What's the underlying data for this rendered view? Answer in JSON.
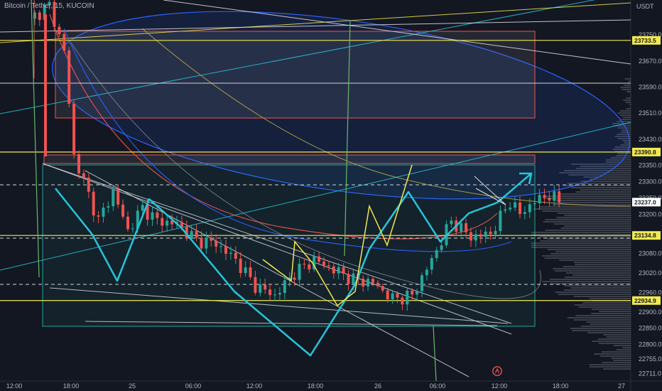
{
  "header": {
    "symbol_title": "Bitcoin / Tether, 15, KUCOIN",
    "currency": "USDT"
  },
  "chart_data": {
    "type": "candlestick",
    "title": "Bitcoin / Tether, 15, KUCOIN",
    "y_unit": "USDT",
    "ylim": [
      22690,
      23840
    ],
    "y_ticks": [
      23750.0,
      23670.0,
      23590.0,
      23510.0,
      23430.0,
      23350.0,
      23300.0,
      23250.0,
      23200.0,
      23080.0,
      23020.0,
      22960.0,
      22900.0,
      22850.0,
      22800.0,
      22755.0,
      22711.0
    ],
    "x_ticks": [
      "12:00",
      "18:00",
      "25",
      "06:00",
      "12:00",
      "18:00",
      "26",
      "06:00",
      "12:00",
      "18:00",
      "27"
    ],
    "horizontal_levels": [
      {
        "price": 23733.5,
        "label": "23733.5",
        "color": "#f2e94e"
      },
      {
        "price": 23390.8,
        "label": "23390.8",
        "color": "#f2e94e"
      },
      {
        "price": 23134.8,
        "label": "23134.8",
        "color": "#f2e94e"
      },
      {
        "price": 22934.9,
        "label": "22934.9",
        "color": "#f2e94e"
      }
    ],
    "last_price": {
      "price": 23237.0,
      "label": "23237.0",
      "color": "#ffffff"
    },
    "price_path": [
      [
        0,
        23800
      ],
      [
        4,
        23840
      ],
      [
        7,
        23700
      ],
      [
        9,
        23380
      ],
      [
        11,
        23300
      ],
      [
        14,
        23180
      ],
      [
        17,
        23270
      ],
      [
        20,
        23150
      ],
      [
        23,
        23220
      ],
      [
        26,
        23180
      ],
      [
        30,
        23170
      ],
      [
        34,
        23120
      ],
      [
        38,
        23110
      ],
      [
        42,
        23060
      ],
      [
        46,
        22980
      ],
      [
        50,
        22950
      ],
      [
        54,
        23020
      ],
      [
        58,
        23060
      ],
      [
        62,
        23030
      ],
      [
        66,
        23000
      ],
      [
        70,
        22990
      ],
      [
        74,
        22940
      ],
      [
        78,
        22950
      ],
      [
        82,
        23060
      ],
      [
        86,
        23180
      ],
      [
        90,
        23130
      ],
      [
        94,
        23140
      ],
      [
        98,
        23240
      ],
      [
        100,
        23200
      ],
      [
        103,
        23240
      ],
      [
        106,
        23260
      ],
      [
        108,
        23237
      ]
    ],
    "colors": {
      "background": "#131722",
      "up_candle": "#26a69a",
      "down_candle": "#ef5350",
      "level_line": "#f2e94e",
      "zigzag": "#26c6da",
      "pattern": "#f2e94e",
      "arrow": "#26c6da"
    }
  }
}
